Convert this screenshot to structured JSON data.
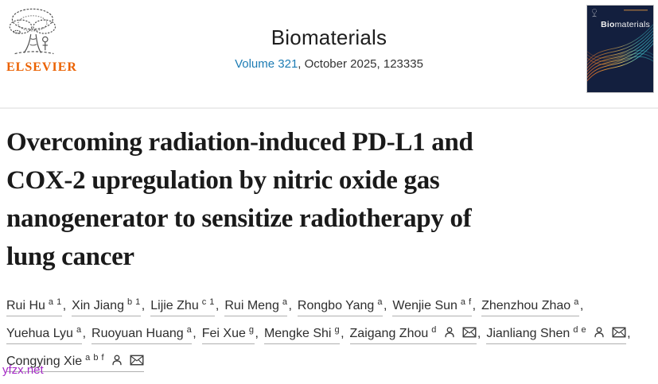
{
  "header": {
    "publisher": {
      "wordmark": "ELSEVIER",
      "brand_color": "#eb6100"
    },
    "journal": {
      "title": "Biomaterials",
      "volume_link": "Volume 321",
      "issue_rest": ", October 2025, 123335",
      "link_color": "#1d7cb4"
    },
    "cover": {
      "name_bold": "Bio",
      "name_rest": "materials",
      "bg_color": "#131f3e",
      "accent_orange": "#ef9c34",
      "accent_teal": "#3fc0c6"
    }
  },
  "article": {
    "title": "Overcoming radiation-induced PD-L1 and\nCOX-2 upregulation by nitric oxide gas\nnanogenerator to sensitize radiotherapy of\nlung cancer"
  },
  "authors": {
    "list": [
      {
        "name": "Rui Hu",
        "sup": "a 1",
        "icons": []
      },
      {
        "name": "Xin Jiang",
        "sup": "b 1",
        "icons": []
      },
      {
        "name": "Lijie Zhu",
        "sup": "c 1",
        "icons": []
      },
      {
        "name": "Rui Meng",
        "sup": "a",
        "icons": []
      },
      {
        "name": "Rongbo Yang",
        "sup": "a",
        "icons": []
      },
      {
        "name": "Wenjie Sun",
        "sup": "a f",
        "icons": []
      },
      {
        "name": "Zhenzhou Zhao",
        "sup": "a",
        "icons": []
      },
      {
        "name": "Yuehua Lyu",
        "sup": "a",
        "icons": []
      },
      {
        "name": "Ruoyuan Huang",
        "sup": "a",
        "icons": []
      },
      {
        "name": "Fei Xue",
        "sup": "g",
        "icons": []
      },
      {
        "name": "Mengke Shi",
        "sup": "g",
        "icons": []
      },
      {
        "name": "Zaigang Zhou",
        "sup": "d",
        "icons": [
          "person",
          "email"
        ]
      },
      {
        "name": "Jianliang Shen",
        "sup": "d e",
        "icons": [
          "person",
          "email"
        ]
      },
      {
        "name": "Congying Xie",
        "sup": "a b f",
        "icons": [
          "person",
          "email"
        ]
      }
    ]
  },
  "watermark": {
    "text": "yfzx.net",
    "color": "#a62bc7"
  }
}
